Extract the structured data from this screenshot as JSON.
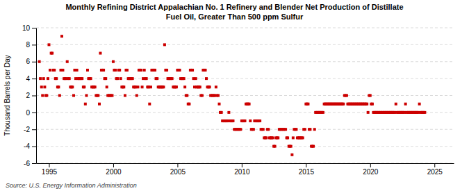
{
  "chart_data": {
    "type": "scatter",
    "title": "Monthly Refining District Appalachian No. 1 Refinery and Blender Net Production of Distillate\nFuel Oil, Greater Than 500 ppm Sulfur",
    "ylabel": "Thousand Barrels per Day",
    "annotations": [
      "Source: U.S. Energy Information Administration"
    ],
    "xlim": [
      1994.0,
      2026.5
    ],
    "ylim": [
      -6,
      10
    ],
    "xticks": [
      1995,
      2000,
      2005,
      2010,
      2015,
      2020,
      2025
    ],
    "yticks": [
      -6,
      -4,
      -2,
      0,
      2,
      4,
      6,
      8,
      10
    ],
    "grid": "y",
    "color": "#CC0000",
    "marker": "square",
    "x": [
      1994.25,
      1994.33,
      1994.42,
      1994.5,
      1994.58,
      1994.67,
      1994.75,
      1994.83,
      1994.92,
      1995.0,
      1995.08,
      1995.17,
      1995.25,
      1995.33,
      1995.42,
      1995.5,
      1995.58,
      1995.67,
      1995.75,
      1995.83,
      1995.92,
      1996.0,
      1996.08,
      1996.17,
      1996.25,
      1996.33,
      1996.42,
      1996.5,
      1996.58,
      1996.67,
      1996.75,
      1996.83,
      1996.92,
      1997.0,
      1997.08,
      1997.17,
      1997.25,
      1997.33,
      1997.42,
      1997.5,
      1997.58,
      1997.67,
      1997.75,
      1997.83,
      1997.92,
      1998.0,
      1998.08,
      1998.17,
      1998.25,
      1998.33,
      1998.42,
      1998.5,
      1998.58,
      1998.67,
      1998.75,
      1998.83,
      1998.92,
      1999.0,
      1999.08,
      1999.17,
      1999.25,
      1999.33,
      1999.42,
      1999.5,
      1999.58,
      1999.67,
      1999.75,
      1999.83,
      1999.92,
      2000.0,
      2000.08,
      2000.17,
      2000.25,
      2000.33,
      2000.42,
      2000.5,
      2000.58,
      2000.67,
      2000.75,
      2000.83,
      2000.92,
      2001.0,
      2001.08,
      2001.17,
      2001.25,
      2001.33,
      2001.42,
      2001.5,
      2001.58,
      2001.67,
      2001.75,
      2001.83,
      2001.92,
      2002.0,
      2002.08,
      2002.17,
      2002.25,
      2002.33,
      2002.42,
      2002.5,
      2002.58,
      2002.67,
      2002.75,
      2002.83,
      2002.92,
      2003.0,
      2003.08,
      2003.17,
      2003.25,
      2003.33,
      2003.42,
      2003.5,
      2003.58,
      2003.67,
      2003.75,
      2003.83,
      2003.92,
      2004.0,
      2004.08,
      2004.17,
      2004.25,
      2004.33,
      2004.42,
      2004.5,
      2004.58,
      2004.67,
      2004.75,
      2004.83,
      2004.92,
      2005.0,
      2005.08,
      2005.17,
      2005.25,
      2005.33,
      2005.42,
      2005.5,
      2005.58,
      2005.67,
      2005.75,
      2005.83,
      2005.92,
      2006.0,
      2006.08,
      2006.17,
      2006.25,
      2006.33,
      2006.42,
      2006.5,
      2006.58,
      2006.67,
      2006.75,
      2006.83,
      2006.92,
      2007.0,
      2007.08,
      2007.17,
      2007.25,
      2007.33,
      2007.42,
      2007.5,
      2007.58,
      2007.67,
      2007.75,
      2007.83,
      2007.92,
      2008.0,
      2008.08,
      2008.17,
      2008.25,
      2008.33,
      2008.42,
      2008.5,
      2008.58,
      2008.67,
      2008.75,
      2008.83,
      2008.92,
      2009.0,
      2009.08,
      2009.17,
      2009.25,
      2009.33,
      2009.42,
      2009.5,
      2009.58,
      2009.67,
      2009.75,
      2009.83,
      2009.92,
      2010.0,
      2010.08,
      2010.17,
      2010.25,
      2010.33,
      2010.42,
      2010.5,
      2010.58,
      2010.67,
      2010.75,
      2010.83,
      2010.92,
      2011.0,
      2011.08,
      2011.17,
      2011.25,
      2011.33,
      2011.42,
      2011.5,
      2011.58,
      2011.67,
      2011.75,
      2011.83,
      2011.92,
      2012.0,
      2012.08,
      2012.17,
      2012.25,
      2012.33,
      2012.42,
      2012.5,
      2012.58,
      2012.67,
      2012.75,
      2012.83,
      2012.92,
      2013.0,
      2013.08,
      2013.17,
      2013.25,
      2013.33,
      2013.42,
      2013.5,
      2013.58,
      2013.67,
      2013.75,
      2013.83,
      2013.92,
      2014.0,
      2014.08,
      2014.17,
      2014.25,
      2014.33,
      2014.42,
      2014.5,
      2014.58,
      2014.67,
      2014.75,
      2014.83,
      2014.92,
      2015.0,
      2015.08,
      2015.17,
      2015.25,
      2015.33,
      2015.42,
      2015.5,
      2015.58,
      2015.67,
      2015.75,
      2015.83,
      2015.92,
      2016.0,
      2016.08,
      2016.17,
      2016.25,
      2016.33,
      2016.42,
      2016.5,
      2016.58,
      2016.67,
      2016.75,
      2016.83,
      2016.92,
      2017.0,
      2017.08,
      2017.17,
      2017.25,
      2017.33,
      2017.42,
      2017.5,
      2017.58,
      2017.67,
      2017.75,
      2017.83,
      2017.92,
      2018.0,
      2018.08,
      2018.17,
      2018.25,
      2018.33,
      2018.42,
      2018.5,
      2018.58,
      2018.67,
      2018.75,
      2018.83,
      2018.92,
      2019.0,
      2019.08,
      2019.17,
      2019.25,
      2019.33,
      2019.42,
      2019.5,
      2019.58,
      2019.67,
      2019.75,
      2019.83,
      2019.92,
      2020.0,
      2020.08,
      2020.17,
      2020.25,
      2020.33,
      2020.42,
      2020.5,
      2020.58,
      2020.67,
      2020.75,
      2020.83,
      2020.92,
      2021.0,
      2021.08,
      2021.17,
      2021.25,
      2021.33,
      2021.42,
      2021.5,
      2021.58,
      2021.67,
      2021.75,
      2021.83,
      2021.92,
      2022.0,
      2022.08,
      2022.17,
      2022.25,
      2022.33,
      2022.42,
      2022.5,
      2022.58,
      2022.67,
      2022.75,
      2022.83,
      2022.92,
      2023.0,
      2023.08,
      2023.17,
      2023.25,
      2023.33,
      2023.42,
      2023.5,
      2023.58,
      2023.67,
      2023.75,
      2023.83,
      2023.92,
      2024.0,
      2024.08,
      2024.17,
      2024.25
    ],
    "y": [
      6.0,
      4.0,
      3.0,
      2.0,
      4.0,
      3.0,
      2.0,
      2.0,
      4.0,
      8.0,
      5.0,
      7.0,
      7.0,
      5.0,
      5.0,
      4.0,
      4.0,
      3.0,
      3.0,
      2.0,
      5.0,
      9.0,
      5.0,
      4.0,
      4.0,
      4.0,
      6.0,
      4.0,
      4.0,
      3.0,
      3.0,
      3.0,
      2.0,
      5.0,
      4.0,
      5.0,
      4.0,
      4.0,
      4.0,
      4.0,
      4.0,
      3.0,
      3.0,
      1.0,
      2.0,
      5.0,
      4.0,
      4.0,
      4.0,
      3.0,
      3.0,
      3.0,
      3.0,
      2.0,
      2.0,
      2.0,
      1.0,
      7.0,
      5.0,
      5.0,
      5.0,
      4.0,
      4.0,
      3.0,
      2.0,
      2.0,
      2.0,
      2.0,
      2.0,
      6.0,
      5.0,
      5.0,
      4.0,
      4.0,
      5.0,
      5.0,
      4.0,
      3.0,
      3.0,
      3.0,
      2.0,
      5.0,
      5.0,
      4.0,
      4.0,
      4.0,
      4.0,
      4.0,
      3.0,
      3.0,
      3.0,
      2.0,
      3.0,
      5.0,
      5.0,
      5.0,
      3.0,
      4.0,
      5.0,
      4.0,
      4.0,
      3.0,
      3.0,
      1.0,
      3.0,
      5.0,
      5.0,
      5.0,
      5.0,
      4.0,
      4.0,
      3.0,
      3.0,
      3.0,
      3.0,
      3.0,
      3.0,
      8.0,
      5.0,
      5.0,
      4.0,
      4.0,
      4.0,
      4.0,
      4.0,
      3.0,
      3.0,
      3.0,
      3.0,
      5.0,
      5.0,
      5.0,
      4.0,
      4.0,
      4.0,
      4.0,
      3.0,
      2.0,
      2.0,
      1.0,
      1.0,
      5.0,
      5.0,
      5.0,
      4.0,
      3.0,
      4.0,
      3.0,
      3.0,
      3.0,
      3.0,
      2.0,
      2.0,
      5.0,
      5.0,
      5.0,
      4.0,
      3.0,
      3.0,
      3.0,
      2.0,
      2.0,
      2.0,
      2.0,
      2.0,
      3.0,
      2.0,
      2.0,
      1.0,
      0.0,
      0.0,
      -1.0,
      -1.0,
      -1.0,
      -1.0,
      -1.0,
      -1.0,
      0.0,
      -1.0,
      -1.0,
      -1.0,
      -1.0,
      -2.0,
      -2.0,
      -2.0,
      -2.0,
      -2.0,
      -2.0,
      -2.0,
      -1.0,
      -1.0,
      -1.0,
      -1.0,
      1.0,
      1.0,
      1.0,
      1.0,
      -1.0,
      -2.0,
      -2.0,
      -2.0,
      -1.0,
      -1.0,
      -1.0,
      -1.0,
      -1.0,
      -1.0,
      -2.0,
      -2.0,
      -2.0,
      -3.0,
      -3.0,
      -3.0,
      -2.0,
      -2.0,
      -3.0,
      -3.0,
      -3.0,
      -3.0,
      -4.0,
      -4.0,
      -3.0,
      -3.0,
      -3.0,
      -2.0,
      -2.0,
      -2.0,
      -2.0,
      -2.0,
      -2.0,
      -2.0,
      -3.0,
      -3.0,
      -4.0,
      -4.0,
      -4.0,
      -5.0,
      -3.0,
      -2.0,
      -2.0,
      -2.0,
      -3.0,
      -3.0,
      -3.0,
      -3.0,
      -3.0,
      -3.0,
      -2.0,
      -2.0,
      1.0,
      1.0,
      1.0,
      -2.0,
      -2.0,
      -4.0,
      -4.0,
      -4.0,
      -2.0,
      0.0,
      0.0,
      0.0,
      0.0,
      0.0,
      0.0,
      0.0,
      0.0,
      1.0,
      1.0,
      1.0,
      1.0,
      1.0,
      1.0,
      1.0,
      1.0,
      1.0,
      1.0,
      1.0,
      1.0,
      1.0,
      1.0,
      1.0,
      1.0,
      1.0,
      1.0,
      1.0,
      2.0,
      2.0,
      2.0,
      1.0,
      1.0,
      1.0,
      1.0,
      1.0,
      1.0,
      1.0,
      1.0,
      1.0,
      1.0,
      1.0,
      1.0,
      1.0,
      1.0,
      1.0,
      1.0,
      1.0,
      1.0,
      1.0,
      0.0,
      2.0,
      2.0,
      1.0,
      1.0,
      0.0,
      0.0,
      0.0,
      0.0,
      0.0,
      0.0,
      0.0,
      0.0,
      0.0,
      0.0,
      0.0,
      0.0,
      0.0,
      0.0,
      0.0,
      0.0,
      0.0,
      0.0,
      0.0,
      0.0,
      0.0,
      1.0,
      0.0,
      0.0,
      0.0,
      0.0,
      0.0,
      0.0,
      0.0,
      0.0,
      1.0,
      0.0,
      0.0,
      0.0,
      0.0,
      0.0,
      0.0,
      0.0,
      0.0,
      0.0,
      0.0,
      0.0,
      0.0,
      1.0,
      0.0,
      0.0,
      0.0,
      0.0,
      0.0
    ]
  }
}
